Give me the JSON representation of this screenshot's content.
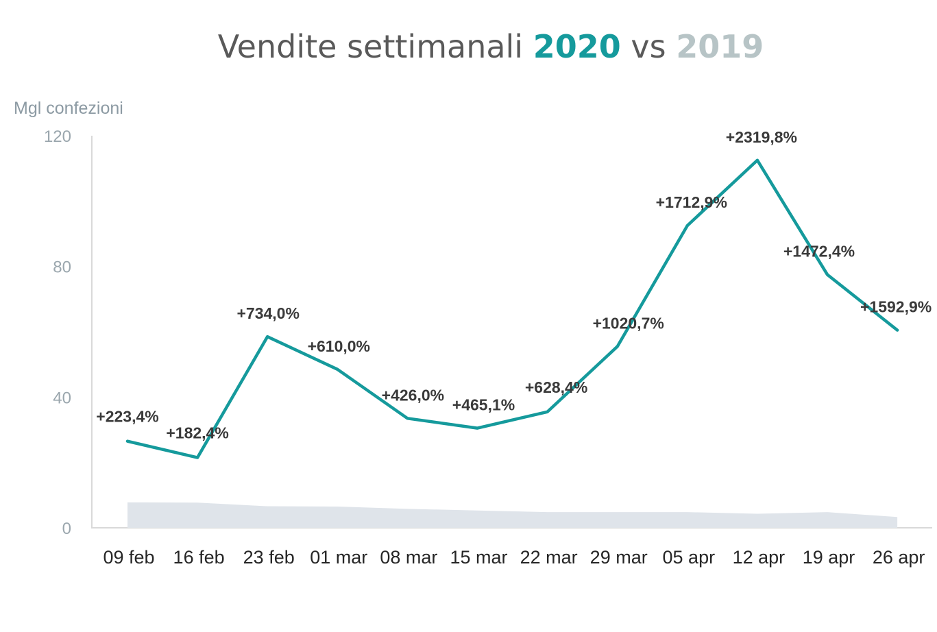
{
  "chart_data": {
    "type": "line",
    "title": {
      "prefix": "Vendite settimanali ",
      "year_2020": "2020",
      "middle": " vs ",
      "year_2019": "2019"
    },
    "ylabel": "Mgl confezioni",
    "ylim": [
      0,
      120
    ],
    "yticks": [
      "0",
      "40",
      "80",
      "120"
    ],
    "categories": [
      "09 feb",
      "16 feb",
      "23 feb",
      "01 mar",
      "08 mar",
      "15 mar",
      "22 mar",
      "29 mar",
      "05 apr",
      "12 apr",
      "19 apr",
      "26 apr"
    ],
    "series": [
      {
        "name": "2020",
        "type": "line",
        "color": "#159a9c",
        "values": [
          26.5,
          21.5,
          58.5,
          48.5,
          33.5,
          30.5,
          35.5,
          55.5,
          92.5,
          112.5,
          77.5,
          60.5
        ]
      },
      {
        "name": "2019",
        "type": "area",
        "color": "#dfe4ea",
        "values": [
          7.8,
          7.7,
          6.6,
          6.5,
          5.8,
          5.3,
          4.8,
          4.8,
          4.8,
          4.3,
          4.8,
          3.3
        ]
      }
    ],
    "data_labels": [
      "+223,4%",
      "+182,4%",
      "+734,0%",
      "+610,0%",
      "+426,0%",
      "+465,1%",
      "+628,4%",
      "+1020,7%",
      "+1712,9%",
      "+2319,8%",
      "+1472,4%",
      "+1592,9%"
    ],
    "grid": false,
    "legend": "none"
  }
}
